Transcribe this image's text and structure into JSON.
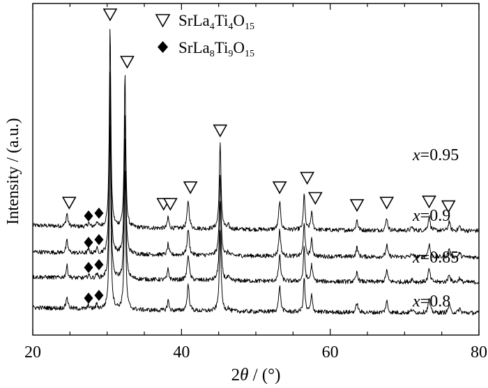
{
  "chart_data": {
    "type": "line",
    "xlabel_prefix": "2",
    "xlabel_symbol": "θ",
    "xlabel_suffix": " / (°)",
    "ylabel": "Intensity / (a.u.)",
    "xlim": [
      20,
      80
    ],
    "xticks": [
      20,
      40,
      60,
      80
    ],
    "x_minor_step": 5,
    "grid": false,
    "legend_placement": "top-center",
    "legend": [
      {
        "marker": "open-triangle-down",
        "base": "SrLa",
        "sub1": "4",
        "mid": "Ti",
        "sub2": "4",
        "end": "O",
        "sub3": "15"
      },
      {
        "marker": "filled-diamond",
        "base": "SrLa",
        "sub1": "8",
        "mid": "Ti",
        "sub2": "9",
        "end": "O",
        "sub3": "15"
      }
    ],
    "series": [
      {
        "var": "x",
        "eq": "=0.95",
        "offset": 3,
        "peak_scale": 1.0
      },
      {
        "var": "x",
        "eq": "=0.9",
        "offset": 2,
        "peak_scale": 0.93
      },
      {
        "var": "x",
        "eq": "=0.85",
        "offset": 1,
        "peak_scale": 0.93
      },
      {
        "var": "x",
        "eq": "=0.8",
        "offset": 0,
        "peak_scale": 0.93
      }
    ],
    "peaks": [
      {
        "x": 24.6,
        "h": 0.55,
        "w": 0.14,
        "phase": "SrLa4Ti4O15"
      },
      {
        "x": 27.5,
        "h": 0.18,
        "w": 0.12,
        "phase": "SrLa8Ti9O15"
      },
      {
        "x": 28.6,
        "h": 0.22,
        "w": 0.12,
        "phase": "SrLa8Ti9O15"
      },
      {
        "x": 30.4,
        "h": 8.5,
        "w": 0.12,
        "phase": "SrLa4Ti4O15"
      },
      {
        "x": 32.4,
        "h": 6.5,
        "w": 0.12,
        "phase": "SrLa4Ti4O15"
      },
      {
        "x": 38.2,
        "h": 0.5,
        "w": 0.12,
        "phase": "SrLa4Ti4O15"
      },
      {
        "x": 40.9,
        "h": 1.2,
        "w": 0.16,
        "phase": "SrLa4Ti4O15"
      },
      {
        "x": 45.2,
        "h": 3.6,
        "w": 0.14,
        "phase": "SrLa4Ti4O15"
      },
      {
        "x": 46.3,
        "h": 0.15,
        "w": 0.12,
        "phase": ""
      },
      {
        "x": 53.2,
        "h": 1.2,
        "w": 0.15,
        "phase": "SrLa4Ti4O15"
      },
      {
        "x": 56.5,
        "h": 1.6,
        "w": 0.12,
        "phase": "SrLa4Ti4O15"
      },
      {
        "x": 57.5,
        "h": 0.75,
        "w": 0.14,
        "phase": "SrLa4Ti4O15"
      },
      {
        "x": 63.6,
        "h": 0.45,
        "w": 0.14,
        "phase": "SrLa4Ti4O15"
      },
      {
        "x": 67.6,
        "h": 0.55,
        "w": 0.14,
        "phase": "SrLa4Ti4O15"
      },
      {
        "x": 71.0,
        "h": 0.15,
        "w": 0.14,
        "phase": ""
      },
      {
        "x": 73.3,
        "h": 0.6,
        "w": 0.16,
        "phase": "SrLa4Ti4O15"
      },
      {
        "x": 76.0,
        "h": 0.4,
        "w": 0.14,
        "phase": "SrLa4Ti4O15"
      },
      {
        "x": 77.4,
        "h": 0.2,
        "w": 0.14,
        "phase": ""
      }
    ],
    "triangle_markers_x": [
      24.9,
      30.4,
      32.7,
      37.6,
      38.5,
      41.2,
      45.2,
      53.2,
      56.9,
      58.0,
      63.6,
      67.6,
      73.3,
      75.9
    ],
    "diamond_markers_x": [
      27.5,
      28.9
    ]
  }
}
